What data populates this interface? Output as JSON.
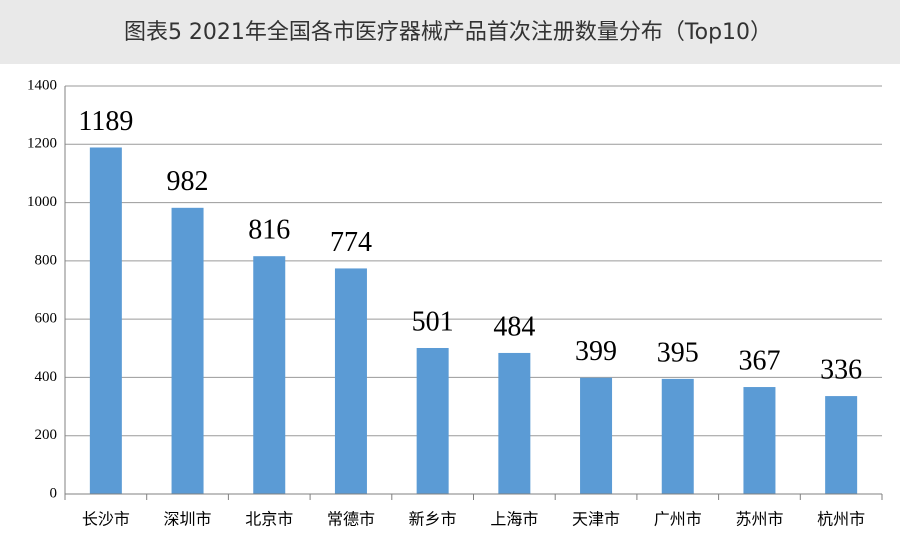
{
  "chart_data": {
    "type": "bar",
    "title": "图表5  2021年全国各市医疗器械产品首次注册数量分布（Top10）",
    "categories": [
      "长沙市",
      "深圳市",
      "北京市",
      "常德市",
      "新乡市",
      "上海市",
      "天津市",
      "广州市",
      "苏州市",
      "杭州市"
    ],
    "values": [
      1189,
      982,
      816,
      774,
      501,
      484,
      399,
      395,
      367,
      336
    ],
    "color": "#5b9bd5",
    "ylim": [
      0,
      1400
    ],
    "yticks": [
      0,
      200,
      400,
      600,
      800,
      1000,
      1200,
      1400
    ],
    "grid": true
  }
}
